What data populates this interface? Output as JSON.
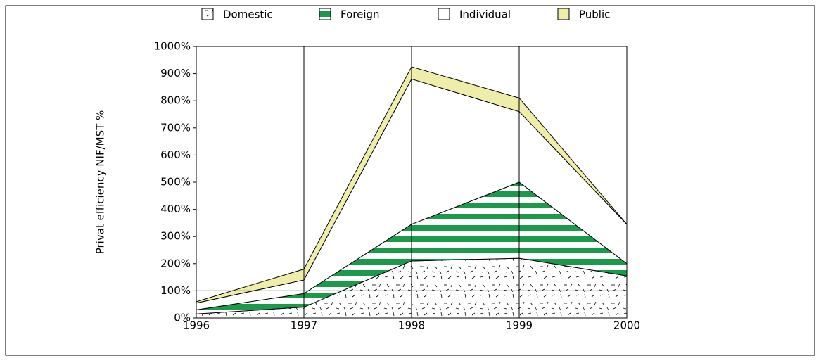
{
  "chart_data": {
    "type": "stacked-area",
    "y_label": "Privat efficiency NIF/MST %",
    "x": [
      1996,
      1997,
      1998,
      1999,
      2000
    ],
    "xlim": [
      1996,
      2000
    ],
    "ylim": [
      0,
      1000
    ],
    "yticks": [
      {
        "value": 0,
        "label": "0%"
      },
      {
        "value": 100,
        "label": "100%"
      },
      {
        "value": 200,
        "label": "200%"
      },
      {
        "value": 300,
        "label": "300%"
      },
      {
        "value": 400,
        "label": "400%"
      },
      {
        "value": 500,
        "label": "500%"
      },
      {
        "value": 600,
        "label": "600%"
      },
      {
        "value": 700,
        "label": "700%"
      },
      {
        "value": 800,
        "label": "800%"
      },
      {
        "value": 900,
        "label": "900%"
      },
      {
        "value": 1000,
        "label": "1000%"
      }
    ],
    "reference_line": 100,
    "vertical_grid": true,
    "legend": "top",
    "series": [
      {
        "name": "Domestic",
        "color": "#000000",
        "pattern": "dashes",
        "values": [
          15,
          40,
          210,
          220,
          155
        ]
      },
      {
        "name": "Foreign",
        "color": "#1a9a4a",
        "pattern": "stripes",
        "values": [
          15,
          50,
          135,
          280,
          45
        ]
      },
      {
        "name": "Individual",
        "color": "#ffffff",
        "pattern": "solid",
        "values": [
          25,
          50,
          535,
          260,
          145
        ]
      },
      {
        "name": "Public",
        "color": "#eeeeaa",
        "pattern": "solid",
        "values": [
          5,
          40,
          45,
          50,
          0
        ]
      }
    ]
  }
}
